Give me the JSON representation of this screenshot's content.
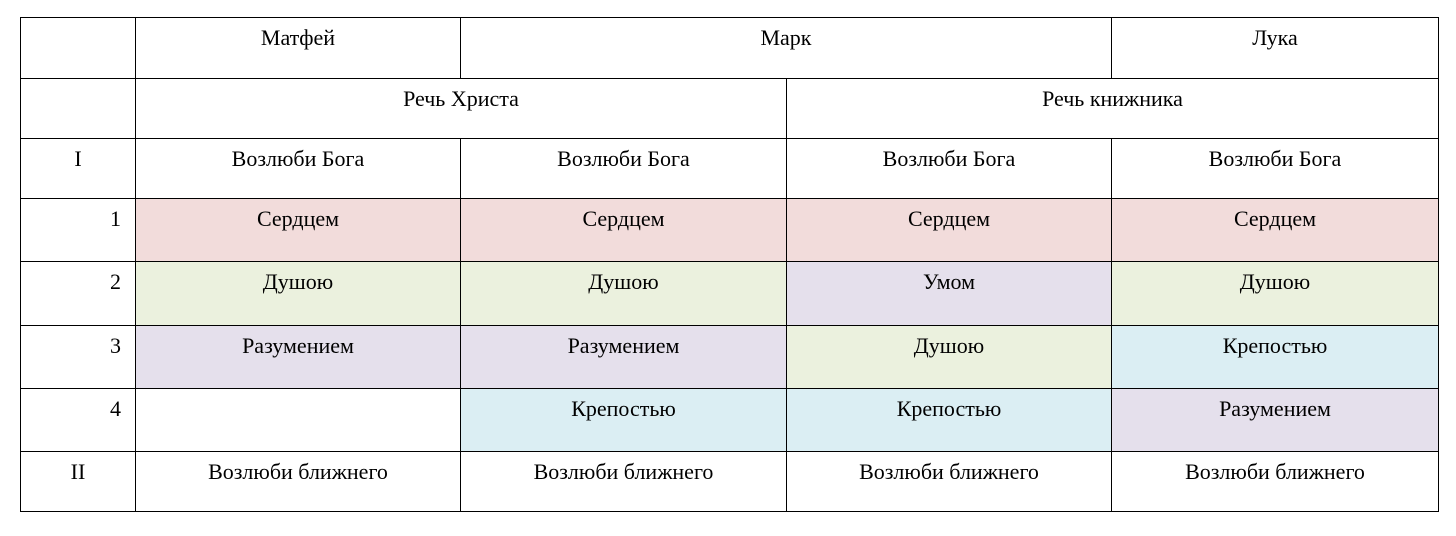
{
  "colors": {
    "pink": "#f2dcdb",
    "green": "#ebf1de",
    "purple": "#e5e0ec",
    "blue": "#dbeef3"
  },
  "header": {
    "gospels": {
      "matthew": "Матфей",
      "mark": "Марк",
      "luke": "Лука"
    },
    "speakers": {
      "christ": "Речь Христа",
      "scribe": "Речь книжника"
    }
  },
  "rows": [
    {
      "label": "I",
      "cells": [
        "Возлюби Бога",
        "Возлюби Бога",
        "Возлюби Бога",
        "Возлюби Бога"
      ]
    },
    {
      "label": "1",
      "cells": [
        "Сердцем",
        "Сердцем",
        "Сердцем",
        "Сердцем"
      ]
    },
    {
      "label": "2",
      "cells": [
        "Душою",
        "Душою",
        "Умом",
        "Душою"
      ]
    },
    {
      "label": "3",
      "cells": [
        "Разумением",
        "Разумением",
        "Душою",
        "Крепостью"
      ]
    },
    {
      "label": "4",
      "cells": [
        "",
        "Крепостью",
        "Крепостью",
        "Разумением"
      ]
    },
    {
      "label": "II",
      "cells": [
        "Возлюби ближнего",
        "Возлюби ближнего",
        "Возлюби ближнего",
        "Возлюби ближнего"
      ]
    }
  ]
}
